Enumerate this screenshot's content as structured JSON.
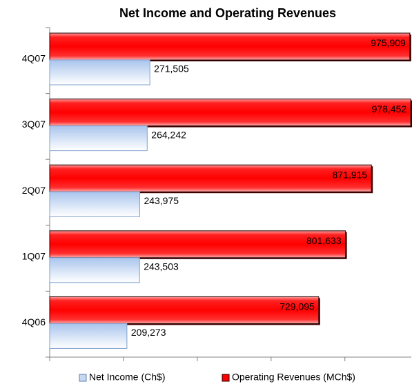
{
  "chart_data": {
    "type": "hbar",
    "title": "Net Income and Operating Revenues",
    "categories": [
      "4Q07",
      "3Q07",
      "2Q07",
      "1Q07",
      "4Q06"
    ],
    "series": [
      {
        "name": "Net Income (Ch$)",
        "color": "#c6d9f1",
        "values": [
          271505,
          264242,
          243975,
          243503,
          209273
        ],
        "value_labels": [
          "271,505",
          "264,242",
          "243,975",
          "243,503",
          "209,273"
        ]
      },
      {
        "name": "Operating Revenues (MCh$)",
        "color": "#ff0000",
        "values": [
          975909,
          978452,
          871915,
          801633,
          729095
        ],
        "value_labels": [
          "975,909",
          "978,452",
          "871,915",
          "801,633",
          "729,095"
        ]
      }
    ],
    "xlim": [
      0,
      980000
    ],
    "xticks": [
      0,
      200000,
      400000,
      600000,
      800000
    ],
    "legend": "bottom"
  }
}
